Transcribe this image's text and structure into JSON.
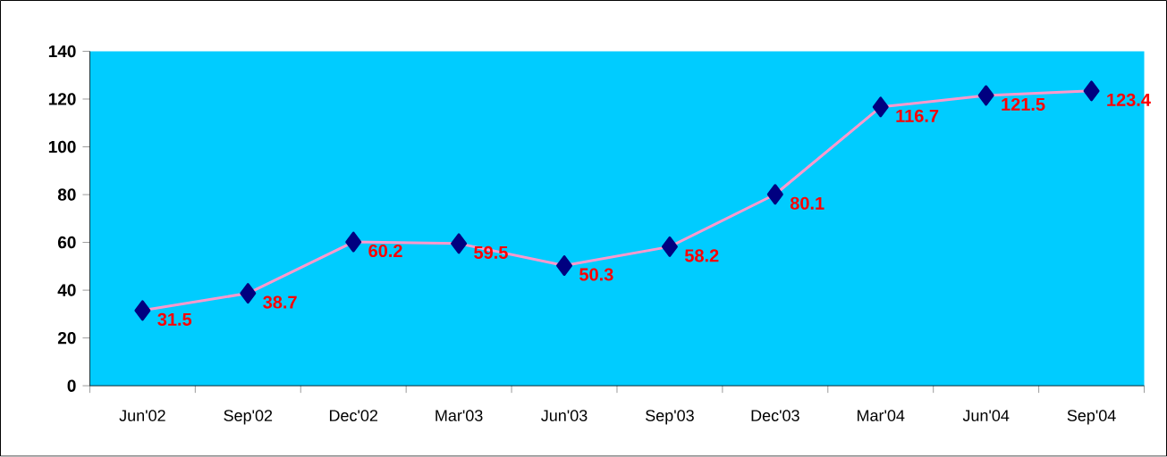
{
  "chart_data": {
    "type": "line",
    "categories": [
      "Jun'02",
      "Sep'02",
      "Dec'02",
      "Mar'03",
      "Jun'03",
      "Sep'03",
      "Dec'03",
      "Mar'04",
      "Jun'04",
      "Sep'04"
    ],
    "values": [
      31.5,
      38.7,
      60.2,
      59.5,
      50.3,
      58.2,
      80.1,
      116.7,
      121.5,
      123.4
    ],
    "color": "#ff99cc",
    "marker": "diamond",
    "line_style": "solid",
    "data_labels": true,
    "ylim": [
      0,
      140
    ],
    "yticks": [
      0,
      20,
      40,
      60,
      80,
      100,
      120,
      140
    ],
    "grid": false
  }
}
